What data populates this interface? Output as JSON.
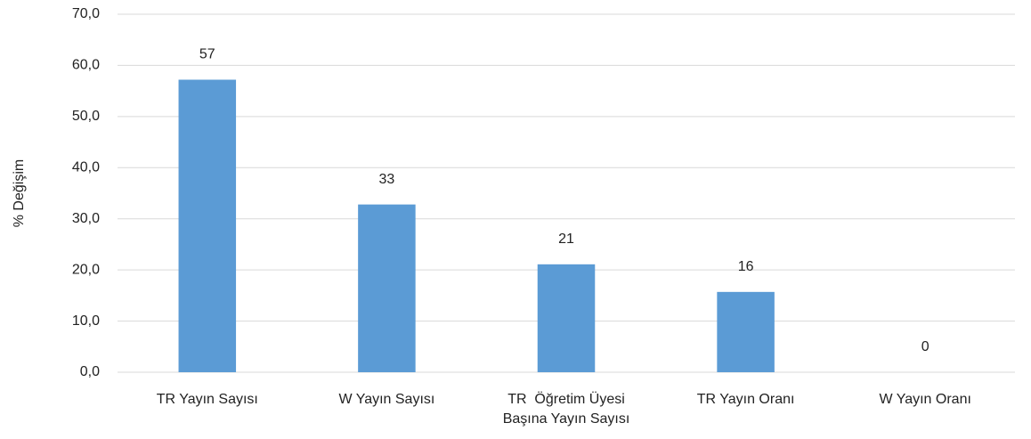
{
  "chart_data": {
    "type": "bar",
    "y_label": "% Değişim",
    "categories": [
      "TR Yayın Sayısı",
      "W Yayın Sayısı",
      "TR  Öğretim Üyesi\nBaşına Yayın Sayısı",
      "TR Yayın Oranı",
      "W Yayın Oranı"
    ],
    "values": [
      57.2,
      32.8,
      21.1,
      15.7,
      0.0
    ],
    "value_labels": [
      "57",
      "33",
      "21",
      "16",
      "0"
    ],
    "color": "#5b9bd5",
    "ylim": [
      0,
      70
    ],
    "yticks": [
      {
        "value": 0,
        "label": "0,0"
      },
      {
        "value": 10,
        "label": "10,0"
      },
      {
        "value": 20,
        "label": "20,0"
      },
      {
        "value": 30,
        "label": "30,0"
      },
      {
        "value": 40,
        "label": "40,0"
      },
      {
        "value": 50,
        "label": "50,0"
      },
      {
        "value": 60,
        "label": "60,0"
      },
      {
        "value": 70,
        "label": "70,0"
      }
    ],
    "grid": true
  }
}
